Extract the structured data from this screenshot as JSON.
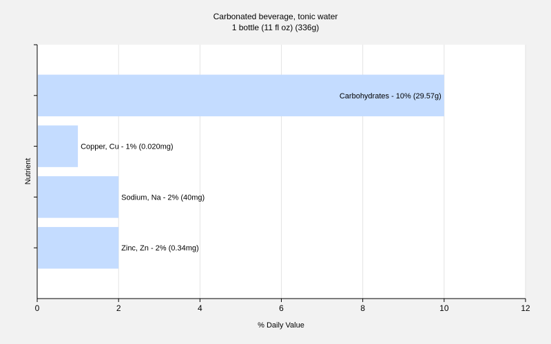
{
  "chart_data": {
    "type": "bar",
    "orientation": "horizontal",
    "title": "Carbonated beverage, tonic water",
    "subtitle": "1 bottle (11 fl oz) (336g)",
    "xlabel": "% Daily Value",
    "ylabel": "Nutrient",
    "xlim": [
      0,
      12
    ],
    "xticks": [
      0,
      2,
      4,
      6,
      8,
      10,
      12
    ],
    "grid": true,
    "categories": [
      "Carbohydrates",
      "Copper, Cu",
      "Sodium, Na",
      "Zinc, Zn"
    ],
    "values": [
      10,
      1,
      2,
      2
    ],
    "labels": [
      "Carbohydrates - 10% (29.57g)",
      "Copper, Cu - 1% (0.020mg)",
      "Sodium, Na - 2% (40mg)",
      "Zinc, Zn - 2% (0.34mg)"
    ],
    "bar_color": "#c4dcff"
  }
}
